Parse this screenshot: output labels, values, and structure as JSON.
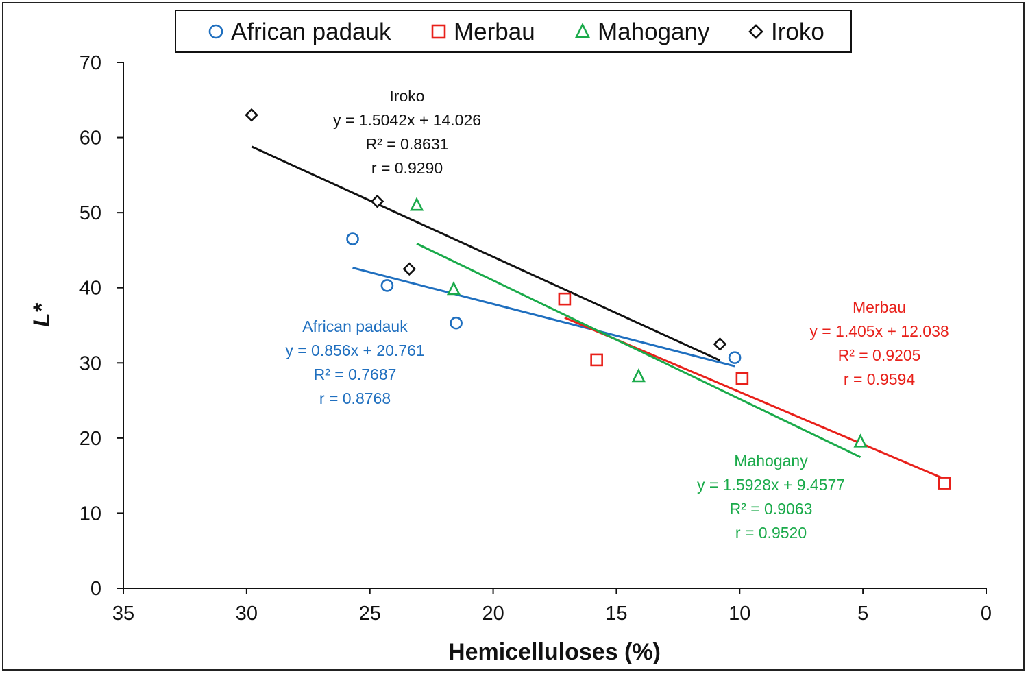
{
  "chart_data": {
    "type": "scatter",
    "xlabel": "Hemicelluloses (%)",
    "ylabel": "L*",
    "xlim": [
      35,
      0
    ],
    "ylim": [
      0,
      70
    ],
    "xticks": [
      35,
      30,
      25,
      20,
      15,
      10,
      5,
      0
    ],
    "yticks": [
      0,
      10,
      20,
      30,
      40,
      50,
      60,
      70
    ],
    "legend": {
      "placement": "top-center"
    },
    "series": [
      {
        "name": "African padauk",
        "marker": "circle",
        "color": "#1f6fbf",
        "points": [
          [
            25.7,
            46.5
          ],
          [
            24.3,
            40.3
          ],
          [
            21.5,
            35.3
          ],
          [
            10.2,
            30.7
          ]
        ],
        "fit_range": [
          25.7,
          10.2
        ],
        "annotation": [
          "African padauk",
          "y = 0.856x + 20.761",
          "R² = 0.7687",
          "r = 0.8768"
        ]
      },
      {
        "name": "Merbau",
        "marker": "square",
        "color": "#e8201a",
        "points": [
          [
            17.1,
            38.5
          ],
          [
            15.8,
            30.4
          ],
          [
            9.9,
            27.9
          ],
          [
            1.7,
            14.0
          ]
        ],
        "fit_range": [
          17.1,
          1.7
        ],
        "annotation": [
          "Merbau",
          "y = 1.405x + 12.038",
          "R² = 0.9205",
          "r = 0.9594"
        ]
      },
      {
        "name": "Mahogany",
        "marker": "triangle",
        "color": "#1aaa4a",
        "points": [
          [
            23.1,
            51.0
          ],
          [
            21.6,
            39.8
          ],
          [
            14.1,
            28.2
          ],
          [
            5.1,
            19.5
          ]
        ],
        "fit_range": [
          23.1,
          5.1
        ],
        "annotation": [
          "Mahogany",
          "y = 1.5928x + 9.4577",
          "R² = 0.9063",
          "r = 0.9520"
        ]
      },
      {
        "name": "Iroko",
        "marker": "diamond",
        "color": "#111111",
        "points": [
          [
            29.8,
            63.0
          ],
          [
            24.7,
            51.5
          ],
          [
            23.4,
            42.5
          ],
          [
            10.8,
            32.5
          ]
        ],
        "fit_range": [
          29.8,
          10.8
        ],
        "annotation": [
          "Iroko",
          "y = 1.5042x + 14.026",
          "R² = 0.8631",
          "r = 0.9290"
        ]
      }
    ]
  }
}
